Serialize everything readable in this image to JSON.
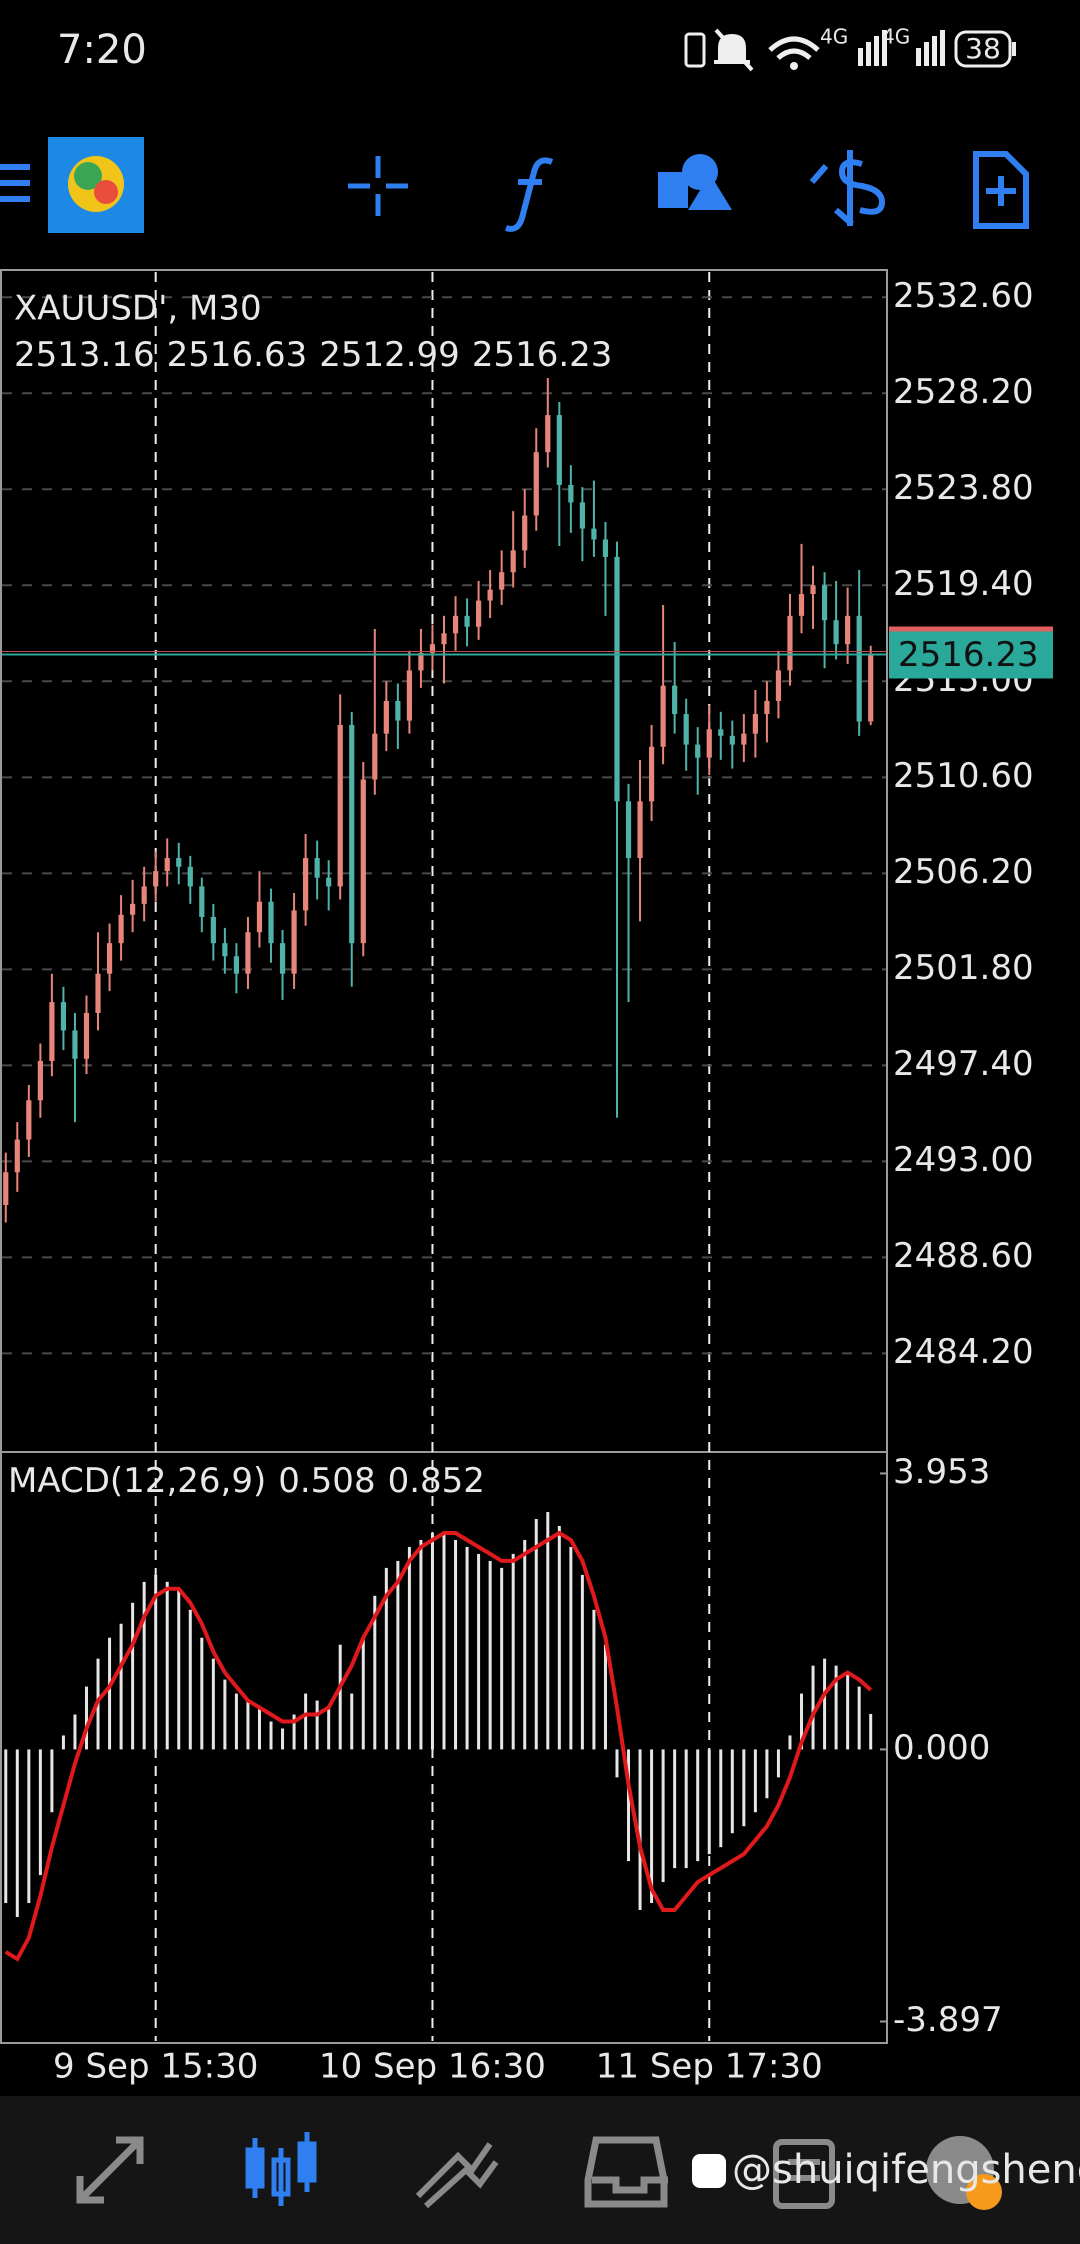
{
  "status_bar": {
    "time": "7:20",
    "network": [
      "4G",
      "4G"
    ],
    "battery": "38"
  },
  "watermark": "@shuiqifengsheng",
  "chart_data": [
    {
      "type": "candlestick",
      "title": "XAUUSD', M30",
      "up_color": "#e8857a",
      "down_color": "#4fb3aa",
      "open": [
        2491.0,
        2492.5,
        2494.0,
        2495.8,
        2497.6,
        2500.3,
        2499.0,
        2497.7,
        2499.8,
        2501.6,
        2503.0,
        2504.3,
        2504.8,
        2505.6,
        2506.3,
        2506.9,
        2506.5,
        2505.6,
        2504.2,
        2503.0,
        2502.4,
        2501.6,
        2503.5,
        2504.9,
        2503.0,
        2501.6,
        2504.5,
        2506.9,
        2506.0,
        2505.6,
        2513.0,
        2503.0,
        2510.5,
        2512.6,
        2514.1,
        2513.2,
        2515.5,
        2516.3,
        2516.7,
        2517.2,
        2518.0,
        2517.5,
        2518.7,
        2519.2,
        2520.0,
        2521.0,
        2522.6,
        2525.5,
        2527.2,
        2524.0,
        2523.2,
        2522.0,
        2521.5,
        2520.7,
        2509.5,
        2506.9,
        2509.5,
        2512.0,
        2514.8,
        2513.5,
        2512.1,
        2511.5,
        2512.8,
        2512.5,
        2512.1,
        2512.6,
        2513.5,
        2514.1,
        2515.5,
        2518.0,
        2519.0,
        2519.4,
        2517.8,
        2516.7,
        2518.0,
        2513.16
      ],
      "high": [
        2493.4,
        2494.8,
        2496.5,
        2498.4,
        2501.6,
        2501.0,
        2499.8,
        2500.6,
        2503.5,
        2503.9,
        2505.2,
        2505.9,
        2506.5,
        2507.2,
        2507.8,
        2507.6,
        2507.0,
        2506.0,
        2504.8,
        2503.7,
        2503.0,
        2504.2,
        2506.3,
        2505.5,
        2503.6,
        2505.3,
        2508.0,
        2507.7,
        2506.8,
        2514.4,
        2513.6,
        2511.3,
        2517.4,
        2515.0,
        2514.9,
        2516.4,
        2517.4,
        2517.6,
        2518.0,
        2518.9,
        2518.8,
        2519.6,
        2520.1,
        2521.0,
        2522.8,
        2523.8,
        2526.6,
        2528.9,
        2527.8,
        2524.9,
        2523.9,
        2524.2,
        2522.3,
        2521.4,
        2510.3,
        2511.4,
        2513.0,
        2518.5,
        2516.8,
        2514.2,
        2512.9,
        2513.9,
        2513.6,
        2513.2,
        2513.5,
        2514.6,
        2515.0,
        2516.4,
        2519.0,
        2521.3,
        2520.3,
        2520.0,
        2519.6,
        2519.3,
        2520.1,
        2516.63
      ],
      "low": [
        2490.2,
        2491.6,
        2493.2,
        2495.0,
        2496.9,
        2498.1,
        2494.8,
        2497.0,
        2499.0,
        2500.8,
        2502.2,
        2503.5,
        2504.0,
        2504.9,
        2505.6,
        2505.7,
        2504.8,
        2503.5,
        2502.2,
        2501.6,
        2500.7,
        2500.9,
        2502.8,
        2502.1,
        2500.4,
        2500.9,
        2503.8,
        2505.0,
        2504.5,
        2505.0,
        2501.0,
        2502.4,
        2509.8,
        2511.8,
        2511.9,
        2512.6,
        2514.7,
        2515.5,
        2514.9,
        2516.4,
        2516.6,
        2516.9,
        2517.9,
        2518.5,
        2519.3,
        2520.2,
        2521.9,
        2524.8,
        2521.2,
        2521.8,
        2520.5,
        2520.7,
        2518.0,
        2495.0,
        2500.3,
        2504.0,
        2508.6,
        2511.2,
        2512.6,
        2510.9,
        2509.8,
        2510.7,
        2511.4,
        2511.0,
        2511.3,
        2511.5,
        2512.2,
        2513.3,
        2514.8,
        2517.2,
        2517.4,
        2515.6,
        2516.0,
        2515.8,
        2512.5,
        2512.99
      ],
      "close": [
        2492.5,
        2494.0,
        2495.8,
        2497.6,
        2500.3,
        2499.0,
        2497.7,
        2499.8,
        2501.6,
        2503.0,
        2504.3,
        2504.8,
        2505.6,
        2506.3,
        2506.9,
        2506.5,
        2505.6,
        2504.2,
        2503.0,
        2502.4,
        2501.6,
        2503.5,
        2504.9,
        2503.0,
        2501.6,
        2504.5,
        2506.9,
        2506.0,
        2505.6,
        2513.0,
        2503.0,
        2510.5,
        2512.6,
        2514.1,
        2513.2,
        2515.5,
        2516.3,
        2516.7,
        2517.2,
        2518.0,
        2517.5,
        2518.7,
        2519.2,
        2520.0,
        2521.0,
        2522.6,
        2525.5,
        2527.2,
        2524.0,
        2523.2,
        2522.0,
        2521.5,
        2520.7,
        2509.5,
        2506.9,
        2509.5,
        2512.0,
        2514.8,
        2513.5,
        2512.1,
        2511.5,
        2512.8,
        2512.5,
        2512.1,
        2512.6,
        2513.5,
        2514.1,
        2515.5,
        2518.0,
        2519.0,
        2519.4,
        2517.8,
        2516.7,
        2518.0,
        2513.16,
        2516.23
      ],
      "xlim": [
        -0.5,
        76.5
      ],
      "xticks": [
        {
          "value": 13,
          "label": "9 Sep 15:30"
        },
        {
          "value": 37,
          "label": "10 Sep 16:30"
        },
        {
          "value": 61,
          "label": "11 Sep 17:30"
        }
      ],
      "ylim": [
        2479.68,
        2533.85
      ],
      "yticks": [
        {
          "value": 2532.6,
          "label": "2532.60"
        },
        {
          "value": 2528.2,
          "label": "2528.20"
        },
        {
          "value": 2523.8,
          "label": "2523.80"
        },
        {
          "value": 2519.4,
          "label": "2519.40"
        },
        {
          "value": 2515,
          "label": "2515.00"
        },
        {
          "value": 2510.6,
          "label": "2510.60"
        },
        {
          "value": 2506.2,
          "label": "2506.20"
        },
        {
          "value": 2501.8,
          "label": "2501.80"
        },
        {
          "value": 2497.4,
          "label": "2497.40"
        },
        {
          "value": 2493,
          "label": "2493.00"
        },
        {
          "value": 2488.6,
          "label": "2488.60"
        },
        {
          "value": 2484.2,
          "label": "2484.20"
        }
      ],
      "grid": true,
      "price_line_color": "#2aa89a"
    },
    {
      "type": "macd",
      "title": "MACD(12,26,9)",
      "histogram_color": "#e6e6e6",
      "signal_color": "#e0191c",
      "histogram": [
        -2.2,
        -2.4,
        -2.2,
        -1.8,
        -0.9,
        0.2,
        0.5,
        0.9,
        1.3,
        1.6,
        1.8,
        2.1,
        2.4,
        2.5,
        2.4,
        2.3,
        2.0,
        1.6,
        1.3,
        1.0,
        0.8,
        0.7,
        0.6,
        0.4,
        0.3,
        0.5,
        0.8,
        0.7,
        0.6,
        1.5,
        0.8,
        1.6,
        2.2,
        2.6,
        2.7,
        2.9,
        3.0,
        3.1,
        3.1,
        3.0,
        2.9,
        2.8,
        2.7,
        2.6,
        2.8,
        3.0,
        3.3,
        3.4,
        3.2,
        2.9,
        2.5,
        2.0,
        1.5,
        -0.4,
        -1.6,
        -2.3,
        -2.2,
        -1.9,
        -1.7,
        -1.7,
        -1.6,
        -1.5,
        -1.4,
        -1.2,
        -1.1,
        -0.9,
        -0.7,
        -0.4,
        0.2,
        0.8,
        1.2,
        1.3,
        1.2,
        1.1,
        0.9,
        0.508
      ],
      "signal": [
        -2.9,
        -3.0,
        -2.7,
        -2.1,
        -1.4,
        -0.8,
        -0.2,
        0.3,
        0.7,
        0.9,
        1.2,
        1.5,
        1.9,
        2.2,
        2.3,
        2.3,
        2.1,
        1.8,
        1.4,
        1.1,
        0.9,
        0.7,
        0.6,
        0.5,
        0.4,
        0.4,
        0.5,
        0.5,
        0.6,
        0.9,
        1.2,
        1.6,
        1.9,
        2.2,
        2.4,
        2.7,
        2.9,
        3.0,
        3.1,
        3.1,
        3.0,
        2.9,
        2.8,
        2.7,
        2.7,
        2.8,
        2.9,
        3.0,
        3.1,
        3.0,
        2.7,
        2.2,
        1.6,
        0.6,
        -0.5,
        -1.4,
        -2.0,
        -2.3,
        -2.3,
        -2.1,
        -1.9,
        -1.8,
        -1.7,
        -1.6,
        -1.5,
        -1.3,
        -1.1,
        -0.8,
        -0.4,
        0.1,
        0.5,
        0.8,
        1.0,
        1.1,
        1.0,
        0.852
      ],
      "ylim": [
        -4.205,
        4.26
      ],
      "yticks": [
        3.953,
        {
          "value": 0,
          "label": "0.000"
        },
        -3.897
      ]
    }
  ]
}
